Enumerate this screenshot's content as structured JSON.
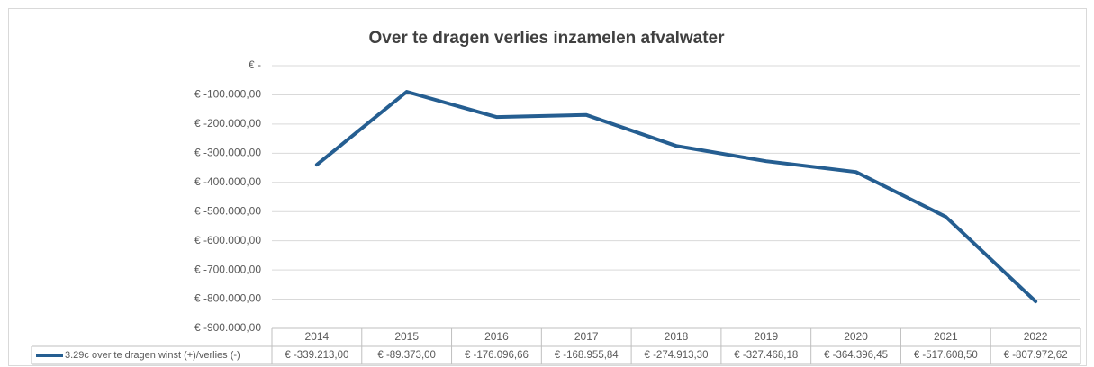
{
  "chart_data": {
    "type": "line",
    "title": "Over te dragen verlies inzamelen afvalwater",
    "categories": [
      "2014",
      "2015",
      "2016",
      "2017",
      "2018",
      "2019",
      "2020",
      "2021",
      "2022"
    ],
    "series": [
      {
        "name": "3.29c over te dragen winst (+)/verlies (-)",
        "color": "#255e91",
        "values": [
          -339213.0,
          -89373.0,
          -176096.66,
          -168955.84,
          -274913.3,
          -327468.18,
          -364396.45,
          -517608.5,
          -807972.62
        ],
        "value_labels": [
          "€ -339.213,00",
          "€ -89.373,00",
          "€ -176.096,66",
          "€ -168.955,84",
          "€ -274.913,30",
          "€ -327.468,18",
          "€ -364.396,45",
          "€ -517.608,50",
          "€ -807.972,62"
        ]
      }
    ],
    "ylim": [
      -900000,
      0
    ],
    "yticks": [
      {
        "value": 0,
        "label": "€ -"
      },
      {
        "value": -100000,
        "label": "€ -100.000,00"
      },
      {
        "value": -200000,
        "label": "€ -200.000,00"
      },
      {
        "value": -300000,
        "label": "€ -300.000,00"
      },
      {
        "value": -400000,
        "label": "€ -400.000,00"
      },
      {
        "value": -500000,
        "label": "€ -500.000,00"
      },
      {
        "value": -600000,
        "label": "€ -600.000,00"
      },
      {
        "value": -700000,
        "label": "€ -700.000,00"
      },
      {
        "value": -800000,
        "label": "€ -800.000,00"
      },
      {
        "value": -900000,
        "label": "€ -900.000,00"
      }
    ],
    "grid": true
  }
}
